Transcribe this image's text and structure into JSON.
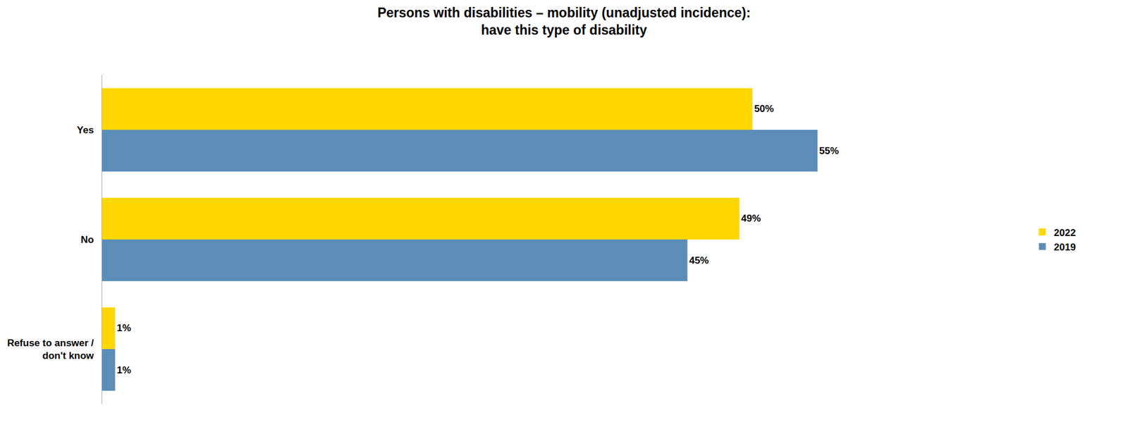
{
  "chart_data": {
    "type": "bar",
    "orientation": "horizontal",
    "title": "Persons with disabilities – mobility (unadjusted incidence):\nhave this type of disability",
    "categories": [
      "Yes",
      "No",
      "Refuse to answer /\ndon't know"
    ],
    "series": [
      {
        "name": "2022",
        "color": "#FFD700",
        "values": [
          50,
          49,
          1
        ],
        "value_labels": [
          "50%",
          "49%",
          "1%"
        ]
      },
      {
        "name": "2019",
        "color": "#5B8DB8",
        "values": [
          55,
          45,
          1
        ],
        "value_labels": [
          "55%",
          "45%",
          "1%"
        ]
      }
    ],
    "xlim": [
      0,
      70
    ],
    "data_labels": true,
    "tick_labels": "y",
    "grid": false,
    "legend": "right"
  }
}
